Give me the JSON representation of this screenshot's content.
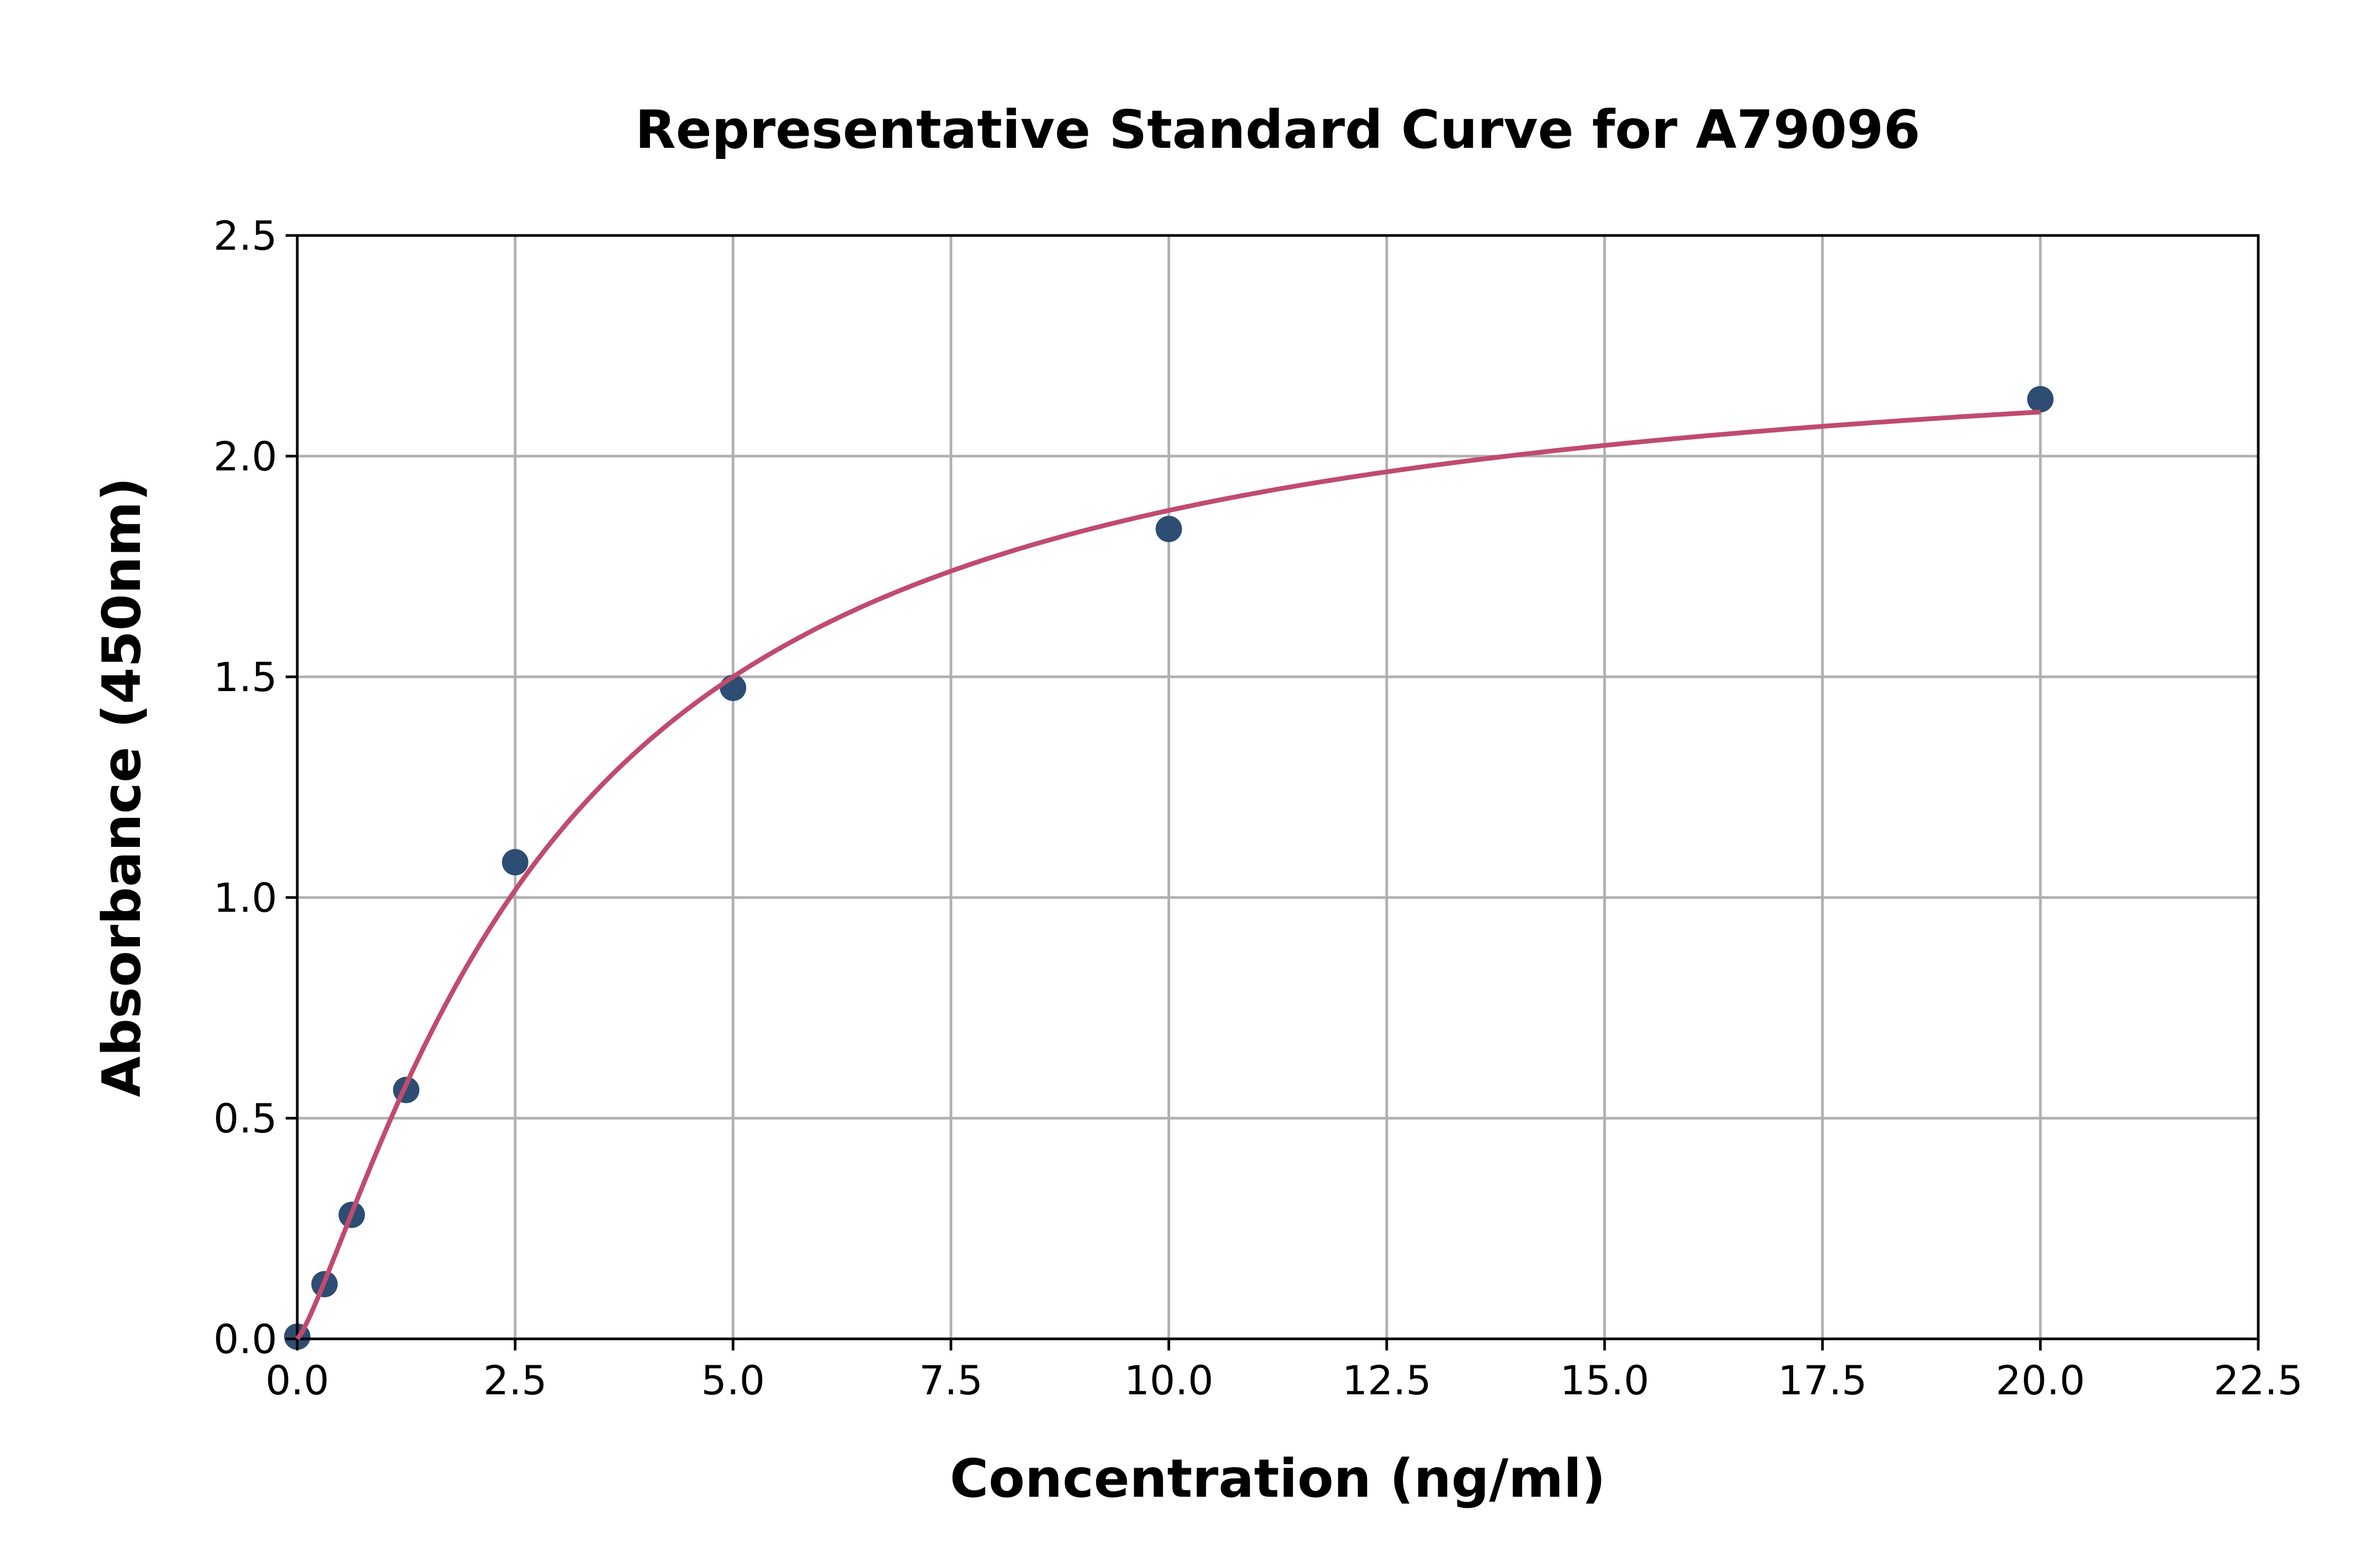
{
  "chart_data": {
    "type": "scatter",
    "title": "Representative Standard Curve for A79096",
    "xlabel": "Concentration (ng/ml)",
    "ylabel": "Absorbance (450nm)",
    "xlim": [
      0,
      22.5
    ],
    "ylim": [
      0,
      2.5
    ],
    "xticks": [
      "0.0",
      "2.5",
      "5.0",
      "7.5",
      "10.0",
      "12.5",
      "15.0",
      "17.5",
      "20.0",
      "22.5"
    ],
    "yticks": [
      "0.0",
      "0.5",
      "1.0",
      "1.5",
      "2.0",
      "2.5"
    ],
    "grid": true,
    "points": {
      "x": [
        0,
        0.3125,
        0.625,
        1.25,
        2.5,
        5,
        10,
        20
      ],
      "y": [
        0.005,
        0.124,
        0.281,
        0.564,
        1.08,
        1.475,
        1.835,
        2.129
      ]
    },
    "fit_curve": {
      "model": "4PL",
      "A": 0,
      "B": 1.243,
      "C": 3.016,
      "D": 2.3,
      "x_range": [
        0,
        20
      ]
    },
    "colors": {
      "points": "#2e4d72",
      "curve": "#c04b6e",
      "grid": "#b0b0b0"
    }
  }
}
